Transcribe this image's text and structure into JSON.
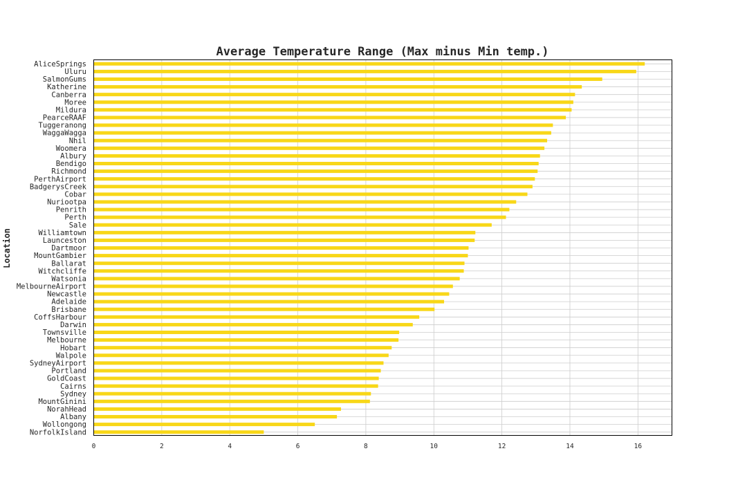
{
  "colors": {
    "bar": "#f8d718",
    "grid": "#cccccc",
    "axis": "#000000",
    "text": "#262626"
  },
  "chart_data": {
    "type": "bar",
    "orientation": "horizontal",
    "title": "Average Temperature Range (Max minus Min temp.)",
    "xlabel": "",
    "ylabel": "Location",
    "xlim": [
      0,
      17
    ],
    "xticks": [
      0,
      2,
      4,
      6,
      8,
      10,
      12,
      14,
      16
    ],
    "grid": true,
    "legend": "none",
    "categories": [
      "AliceSprings",
      "Uluru",
      "SalmonGums",
      "Katherine",
      "Canberra",
      "Moree",
      "Mildura",
      "PearceRAAF",
      "Tuggeranong",
      "WaggaWagga",
      "Nhil",
      "Woomera",
      "Albury",
      "Bendigo",
      "Richmond",
      "PerthAirport",
      "BadgerysCreek",
      "Cobar",
      "Nuriootpa",
      "Penrith",
      "Perth",
      "Sale",
      "Williamtown",
      "Launceston",
      "Dartmoor",
      "MountGambier",
      "Ballarat",
      "Witchcliffe",
      "Watsonia",
      "MelbourneAirport",
      "Newcastle",
      "Adelaide",
      "Brisbane",
      "CoffsHarbour",
      "Darwin",
      "Townsville",
      "Melbourne",
      "Hobart",
      "Walpole",
      "SydneyAirport",
      "Portland",
      "GoldCoast",
      "Cairns",
      "Sydney",
      "MountGinini",
      "NorahHead",
      "Albany",
      "Wollongong",
      "NorfolkIsland"
    ],
    "values": [
      16.2,
      15.95,
      14.95,
      14.35,
      14.15,
      14.1,
      14.05,
      13.88,
      13.5,
      13.45,
      13.33,
      13.25,
      13.12,
      13.08,
      13.05,
      12.97,
      12.9,
      12.75,
      12.42,
      12.22,
      12.12,
      11.7,
      11.22,
      11.2,
      11.02,
      11.0,
      10.9,
      10.88,
      10.76,
      10.56,
      10.45,
      10.3,
      10.02,
      9.57,
      9.38,
      8.98,
      8.96,
      8.76,
      8.67,
      8.52,
      8.44,
      8.38,
      8.36,
      8.15,
      8.12,
      7.27,
      7.15,
      6.5,
      5.0
    ]
  }
}
